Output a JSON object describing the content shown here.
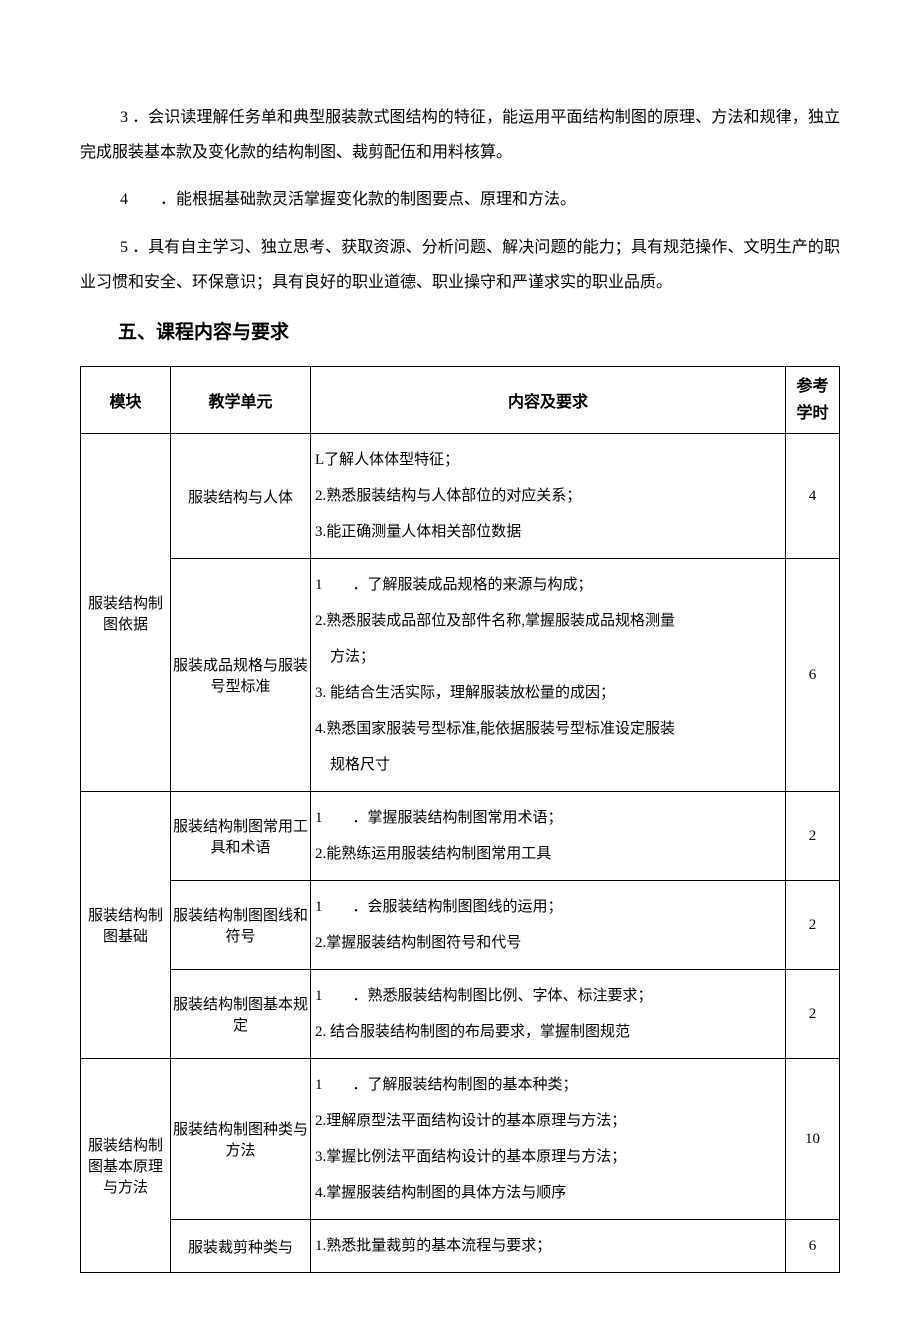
{
  "paragraphs": {
    "p3": "3 ．会识读理解任务单和典型服装款式图结构的特征，能运用平面结构制图的原理、方法和规律，独立完成服装基本款及变化款的结构制图、裁剪配伍和用料核算。",
    "p4": "4　　．能根据基础款灵活掌握变化款的制图要点、原理和方法。",
    "p5": "5 ．具有自主学习、独立思考、获取资源、分析问题、解决问题的能力；具有规范操作、文明生产的职业习惯和安全、环保意识；具有良好的职业道德、职业操守和严谨求实的职业品质。"
  },
  "section_heading": "五、课程内容与要求",
  "table": {
    "headers": {
      "module": "模块",
      "unit": "教学单元",
      "content": "内容及要求",
      "hours_line1": "参考",
      "hours_line2": "学时"
    },
    "rows": [
      {
        "module": "服装结构制图依据",
        "module_rowspan": 2,
        "unit": "服装结构与人体",
        "content_lines": [
          "L了解人体体型特征；",
          "2.熟悉服装结构与人体部位的对应关系；",
          "3.能正确测量人体相关部位数据"
        ],
        "hours": "4"
      },
      {
        "unit": "服装成品规格与服装号型标准",
        "content_lines": [
          "1　　．了解服装成品规格的来源与构成；",
          "2.熟悉服装成品部位及部件名称,掌握服装成品规格测量",
          "　方法；",
          "3. 能结合生活实际，理解服装放松量的成因；",
          "4.熟悉国家服装号型标准,能依据服装号型标准设定服装",
          "　规格尺寸"
        ],
        "hours": "6"
      },
      {
        "module": "服装结构制图基础",
        "module_rowspan": 3,
        "unit": "服装结构制图常用工具和术语",
        "content_lines": [
          "1　　．掌握服装结构制图常用术语；",
          "2.能熟练运用服装结构制图常用工具"
        ],
        "hours": "2"
      },
      {
        "unit": "服装结构制图图线和符号",
        "content_lines": [
          "1　　．会服装结构制图图线的运用；",
          "2.掌握服装结构制图符号和代号"
        ],
        "hours": "2"
      },
      {
        "unit": "服装结构制图基本规定",
        "content_lines": [
          "1　　．熟悉服装结构制图比例、字体、标注要求；",
          "2. 结合服装结构制图的布局要求，掌握制图规范"
        ],
        "hours": "2"
      },
      {
        "module": "服装结构制图基本原理与方法",
        "module_rowspan": 2,
        "unit": "服装结构制图种类与方法",
        "content_lines": [
          "1　　．了解服装结构制图的基本种类；",
          "2.理解原型法平面结构设计的基本原理与方法；",
          "3.掌握比例法平面结构设计的基本原理与方法；",
          "4.掌握服装结构制图的具体方法与顺序"
        ],
        "hours": "10"
      },
      {
        "unit": "服装裁剪种类与",
        "content_lines": [
          "1.熟悉批量裁剪的基本流程与要求；"
        ],
        "hours": "6"
      }
    ]
  }
}
